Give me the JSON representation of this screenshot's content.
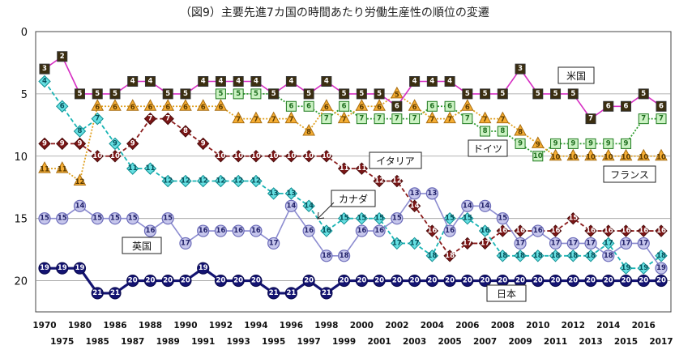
{
  "chart_data": {
    "type": "line",
    "title": "（図9）主要先進7カ国の時間あたり労働生産性の順位の変遷",
    "x": [
      1970,
      1975,
      1980,
      1985,
      1986,
      1987,
      1988,
      1989,
      1990,
      1991,
      1992,
      1993,
      1994,
      1995,
      1996,
      1997,
      1998,
      1999,
      2000,
      2001,
      2002,
      2003,
      2004,
      2005,
      2006,
      2007,
      2008,
      2009,
      2010,
      2011,
      2012,
      2013,
      2014,
      2015,
      2016,
      2017
    ],
    "x_tick_labels_top": [
      "1970",
      "1980",
      "1986",
      "1988",
      "1990",
      "1992",
      "1994",
      "1996",
      "1998",
      "2000",
      "2002",
      "2004",
      "2006",
      "2008",
      "2010",
      "2012",
      "2014",
      "2016"
    ],
    "x_tick_labels_bottom": [
      "1975",
      "1985",
      "1987",
      "1989",
      "1991",
      "1993",
      "1995",
      "1997",
      "1999",
      "2001",
      "2003",
      "2005",
      "2007",
      "2009",
      "2011",
      "2013",
      "2015",
      "2017"
    ],
    "y_ticks": [
      0,
      5,
      10,
      15,
      20
    ],
    "ylim": [
      0,
      22.5
    ],
    "y_reversed": true,
    "grid": "horizontal",
    "series": [
      {
        "name": "米国",
        "marker": "square",
        "color": "#d62fc3",
        "fill": "#3b2e10",
        "text": "#ffffff",
        "dash": "solid",
        "values": [
          3,
          2,
          5,
          5,
          5,
          4,
          4,
          5,
          5,
          4,
          4,
          4,
          4,
          5,
          4,
          5,
          4,
          5,
          5,
          5,
          6,
          4,
          4,
          4,
          5,
          5,
          5,
          3,
          5,
          5,
          5,
          7,
          6,
          6,
          5,
          6
        ]
      },
      {
        "name": "ドイツ",
        "marker": "square",
        "color": "#2e9c2e",
        "fill": "#ccf2c4",
        "text": "#1f6e1f",
        "dash": "dotted",
        "values": [
          null,
          null,
          null,
          null,
          null,
          null,
          null,
          null,
          null,
          null,
          5,
          5,
          5,
          5,
          6,
          6,
          7,
          6,
          7,
          7,
          7,
          7,
          6,
          6,
          7,
          8,
          8,
          9,
          10,
          9,
          9,
          9,
          9,
          9,
          7,
          7
        ]
      },
      {
        "name": "フランス",
        "marker": "triangle",
        "color": "#e0a020",
        "fill": "#f6ae34",
        "text": "#5a3a00",
        "dash": "dotted",
        "values": [
          11,
          11,
          12,
          6,
          6,
          6,
          6,
          6,
          6,
          6,
          6,
          7,
          7,
          7,
          7,
          8,
          6,
          7,
          6,
          6,
          5,
          6,
          7,
          7,
          6,
          7,
          7,
          8,
          9,
          10,
          10,
          10,
          10,
          10,
          10,
          10
        ]
      },
      {
        "name": "イタリア",
        "marker": "diamond",
        "color": "#8a1b1b",
        "fill": "#7a1616",
        "text": "#ffffff",
        "dash": "dashed",
        "values": [
          9,
          9,
          9,
          10,
          10,
          9,
          7,
          7,
          8,
          9,
          10,
          10,
          10,
          10,
          10,
          10,
          10,
          11,
          11,
          12,
          12,
          14,
          16,
          18,
          17,
          17,
          16,
          16,
          16,
          16,
          15,
          16,
          16,
          16,
          16,
          16
        ]
      },
      {
        "name": "カナダ",
        "marker": "diamond",
        "color": "#1ab5b5",
        "fill": "#66dfe2",
        "text": "#05505a",
        "dash": "dashed",
        "values": [
          4,
          6,
          8,
          7,
          9,
          11,
          11,
          12,
          12,
          12,
          12,
          12,
          12,
          13,
          13,
          14,
          16,
          15,
          15,
          15,
          17,
          17,
          18,
          15,
          15,
          16,
          18,
          18,
          18,
          18,
          18,
          18,
          17,
          19,
          19,
          18
        ]
      },
      {
        "name": "英国",
        "marker": "circle",
        "color": "#8c8cd0",
        "fill": "#c6c6ec",
        "text": "#22226a",
        "dash": "solid",
        "values": [
          15,
          15,
          14,
          15,
          15,
          15,
          16,
          15,
          17,
          16,
          16,
          16,
          16,
          17,
          14,
          16,
          18,
          18,
          16,
          16,
          15,
          13,
          13,
          16,
          14,
          14,
          15,
          17,
          16,
          17,
          17,
          17,
          18,
          17,
          17,
          19
        ]
      },
      {
        "name": "日本",
        "marker": "circle",
        "color": "#141472",
        "fill": "#141472",
        "text": "#ffffff",
        "dash": "solid",
        "values": [
          19,
          19,
          19,
          21,
          21,
          20,
          20,
          20,
          20,
          19,
          20,
          20,
          20,
          21,
          21,
          20,
          21,
          20,
          20,
          20,
          20,
          20,
          20,
          20,
          20,
          20,
          20,
          20,
          20,
          20,
          20,
          20,
          20,
          20,
          20,
          20
        ]
      }
    ],
    "callouts": [
      "米国",
      "ドイツ",
      "フランス",
      "イタリア",
      "カナダ",
      "英国",
      "日本"
    ]
  }
}
